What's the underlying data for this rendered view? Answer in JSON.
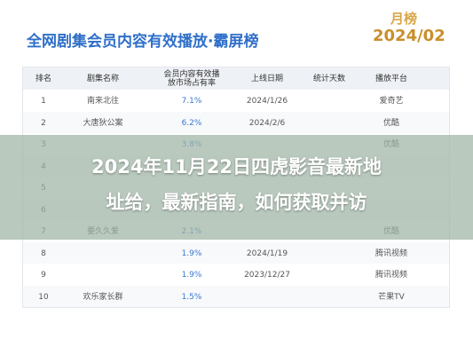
{
  "header": {
    "title": "全网剧集会员内容有效播放·霸屏榜",
    "badge_top": "月榜",
    "badge_bottom": "2024/02"
  },
  "table": {
    "columns": [
      "排名",
      "剧集名称",
      "会员内容有效播放市场占有率",
      "上线日期",
      "统计天数",
      "播放平台"
    ],
    "rows": [
      {
        "rank": "1",
        "name": "南来北往",
        "share": "7.1%",
        "date": "2024/1/26",
        "platform": "爱奇艺"
      },
      {
        "rank": "2",
        "name": "大唐狄公案",
        "share": "6.2%",
        "date": "2024/2/6",
        "platform": "优酷"
      },
      {
        "rank": "3",
        "share": "3.8%",
        "platform": "优酷"
      },
      {
        "rank": "4"
      },
      {
        "rank": "5"
      },
      {
        "rank": "6"
      },
      {
        "rank": "7",
        "name": "要久久爱",
        "share": "2.1%",
        "platform": "优酷"
      },
      {
        "rank": "8",
        "share": "1.9%",
        "date": "2024/1/19",
        "platform": "腾讯视频"
      },
      {
        "rank": "9",
        "share": "1.9%",
        "date": "2023/12/27",
        "platform": "腾讯视频"
      },
      {
        "rank": "10",
        "name": "欢乐家长群",
        "share": "1.5%",
        "platform": "芒果TV"
      }
    ]
  },
  "overlay": {
    "lines": [
      "2024年11月22日四虎影音最新地",
      "址给，最新指南，如何获取并访"
    ]
  }
}
